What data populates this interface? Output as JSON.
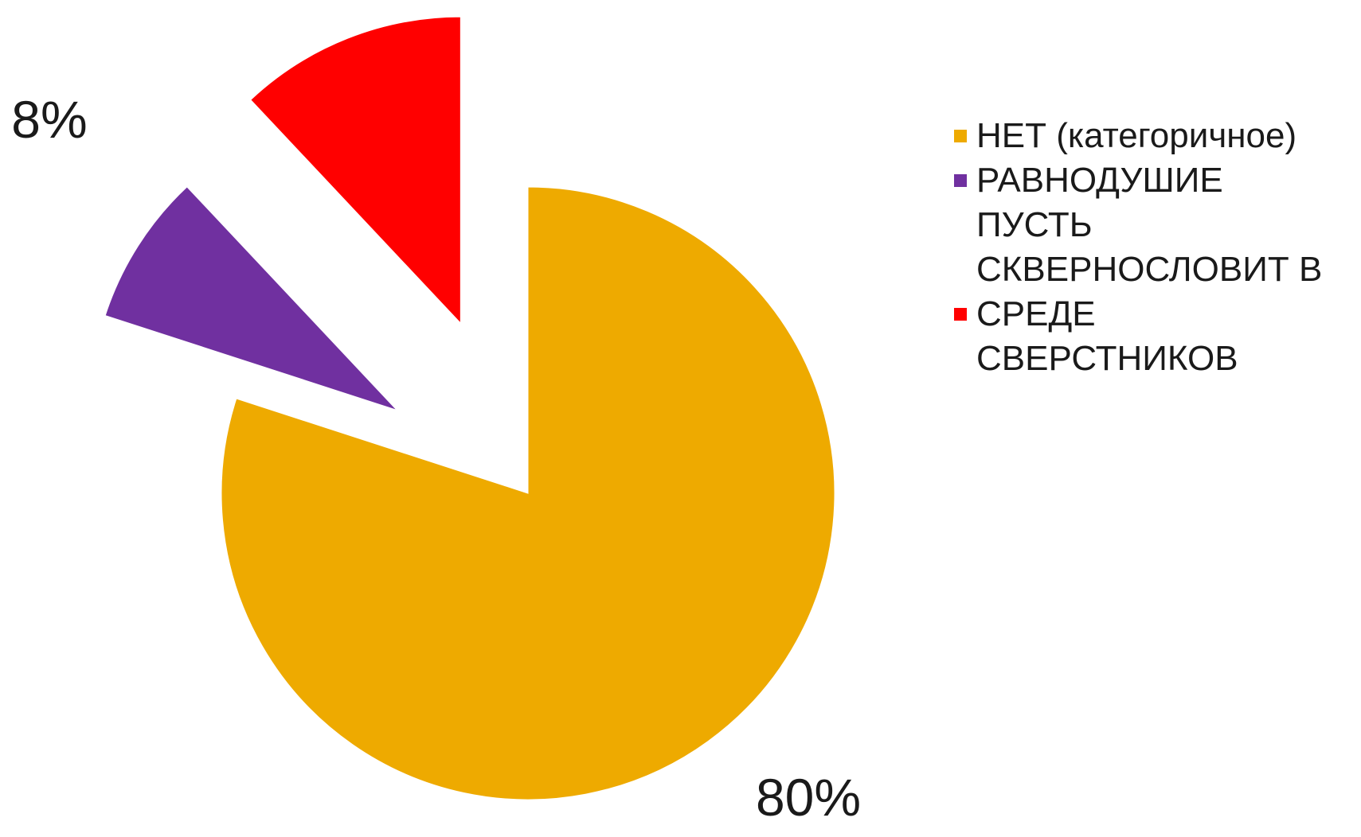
{
  "chart_data": {
    "type": "pie",
    "exploded": true,
    "start_angle_deg": 0,
    "direction": "clockwise",
    "legend_position": "right",
    "slices": [
      {
        "name": "НЕТ (категоричное)",
        "value": 80,
        "label": "80%",
        "color": "#EEAA00"
      },
      {
        "name": "РАВНОДУШИЕ",
        "value": 8,
        "label": "8%",
        "color": "#7030A0"
      },
      {
        "name": "ПУСТЬ СКВЕРНОСЛОВИТ В СРЕДЕ СВЕРСТНИКОВ",
        "value": 12,
        "label": "",
        "color": "#FF0000"
      }
    ]
  }
}
